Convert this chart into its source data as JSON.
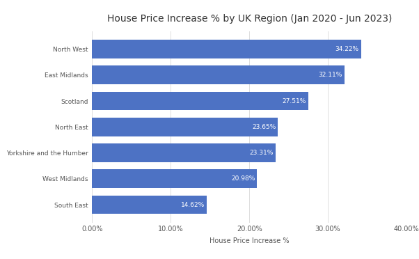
{
  "title": "House Price Increase % by UK Region (Jan 2020 - Jun 2023)",
  "xlabel": "House Price Increase %",
  "categories": [
    "North West",
    "East Midlands",
    "Scotland",
    "North East",
    "Yorkshire and the Humber",
    "West Midlands",
    "South East"
  ],
  "values": [
    34.22,
    32.11,
    27.51,
    23.65,
    23.31,
    20.98,
    14.62
  ],
  "bar_color": "#4d72c4",
  "label_color": "#ffffff",
  "background_color": "#ffffff",
  "xlim": [
    0,
    40
  ],
  "xticks": [
    0,
    10,
    20,
    30,
    40
  ],
  "xtick_labels": [
    "0.00%",
    "10.00%",
    "20.00%",
    "30.00%",
    "40.00%"
  ],
  "title_fontsize": 10,
  "label_fontsize": 6.5,
  "tick_fontsize": 7,
  "xlabel_fontsize": 7,
  "ytick_fontsize": 6.5,
  "bar_height": 0.72
}
